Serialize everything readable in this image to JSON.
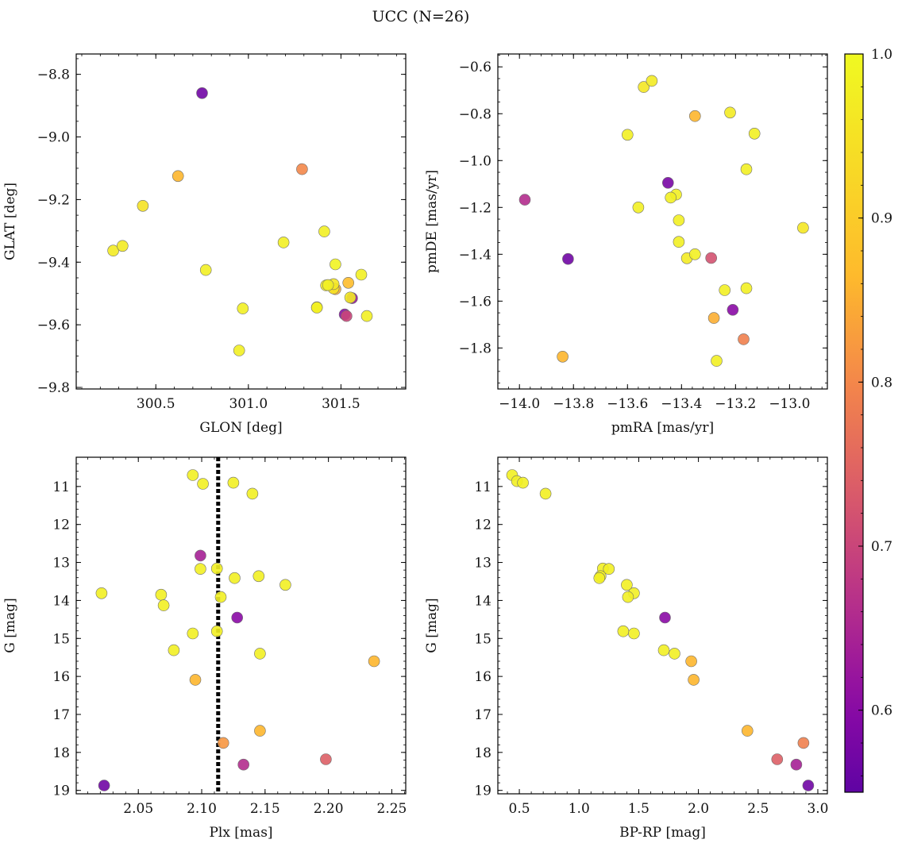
{
  "figure": {
    "title": "UCC (N=26)"
  },
  "colorbar": {
    "colormap": "plasma",
    "vmin": 0.55,
    "vmax": 1.0,
    "ticks": [
      "0.6",
      "0.7",
      "0.8",
      "0.9",
      "1.0"
    ],
    "tick_values": [
      0.6,
      0.7,
      0.8,
      0.9,
      1.0
    ]
  },
  "chart_data": [
    {
      "type": "scatter",
      "panel": "top-left",
      "xlabel": "GLON [deg]",
      "ylabel": "GLAT [deg]",
      "xlim": [
        300.07,
        301.85
      ],
      "ylim": [
        -9.805,
        -8.735
      ],
      "y_inverted": false,
      "xticks": [
        "300.5",
        "301.0",
        "301.5"
      ],
      "xtick_values": [
        300.5,
        301.0,
        301.5
      ],
      "yticks": [
        "−8.8",
        "−9.0",
        "−9.2",
        "−9.4",
        "−9.6",
        "−9.8"
      ],
      "ytick_values": [
        -8.8,
        -9.0,
        -9.2,
        -9.4,
        -9.6,
        -9.8
      ],
      "x": [
        300.75,
        300.62,
        301.29,
        300.43,
        300.27,
        300.32,
        300.77,
        301.19,
        301.41,
        301.47,
        301.61,
        301.43,
        301.54,
        301.46,
        301.42,
        301.55,
        301.56,
        301.37,
        301.37,
        300.97,
        301.52,
        301.53,
        301.64,
        300.95,
        301.47,
        301.46
      ],
      "y": [
        -8.86,
        -9.125,
        -9.103,
        -9.22,
        -9.363,
        -9.348,
        -9.425,
        -9.337,
        -9.302,
        -9.407,
        -9.44,
        -9.473,
        -9.466,
        -9.484,
        -9.474,
        -9.513,
        -9.515,
        -9.545,
        -9.544,
        -9.548,
        -9.567,
        -9.572,
        -9.572,
        -9.682,
        -9.486,
        -9.47
      ],
      "c": [
        0.57,
        0.86,
        0.8,
        0.95,
        0.97,
        0.97,
        0.98,
        0.98,
        0.98,
        0.99,
        0.98,
        0.98,
        0.87,
        0.95,
        0.97,
        0.97,
        0.62,
        0.98,
        0.97,
        0.98,
        0.6,
        0.7,
        0.98,
        0.98,
        0.85,
        0.96
      ]
    },
    {
      "type": "scatter",
      "panel": "top-right",
      "xlabel": "pmRA [mas/yr]",
      "ylabel": "pmDE [mas/yr]",
      "xlim": [
        -14.08,
        -12.86
      ],
      "ylim": [
        -1.975,
        -0.545
      ],
      "y_inverted": false,
      "xticks": [
        "−14.0",
        "−13.8",
        "−13.6",
        "−13.4",
        "−13.2",
        "−13.0"
      ],
      "xtick_values": [
        -14.0,
        -13.8,
        -13.6,
        -13.4,
        -13.2,
        -13.0
      ],
      "yticks": [
        "−0.6",
        "−0.8",
        "−1.0",
        "−1.2",
        "−1.4",
        "−1.6",
        "−1.8"
      ],
      "ytick_values": [
        -0.6,
        -0.8,
        -1.0,
        -1.2,
        -1.4,
        -1.6,
        -1.8
      ],
      "x": [
        -13.51,
        -13.54,
        -13.35,
        -13.22,
        -13.6,
        -13.13,
        -13.16,
        -13.45,
        -13.42,
        -13.44,
        -13.98,
        -13.56,
        -13.41,
        -12.95,
        -13.41,
        -13.82,
        -13.35,
        -13.38,
        -13.29,
        -13.24,
        -13.16,
        -13.21,
        -13.28,
        -13.17,
        -13.84,
        -13.27
      ],
      "y": [
        -0.66,
        -0.686,
        -0.81,
        -0.795,
        -0.89,
        -0.885,
        -1.037,
        -1.095,
        -1.145,
        -1.158,
        -1.167,
        -1.2,
        -1.255,
        -1.287,
        -1.347,
        -1.42,
        -1.4,
        -1.417,
        -1.416,
        -1.553,
        -1.545,
        -1.637,
        -1.672,
        -1.763,
        -1.837,
        -1.855
      ],
      "c": [
        0.97,
        0.96,
        0.86,
        0.97,
        0.98,
        0.98,
        0.98,
        0.58,
        0.98,
        0.98,
        0.66,
        0.98,
        0.98,
        0.96,
        0.98,
        0.57,
        0.98,
        0.97,
        0.72,
        0.98,
        0.98,
        0.6,
        0.85,
        0.79,
        0.86,
        0.98
      ]
    },
    {
      "type": "scatter",
      "panel": "bottom-left",
      "xlabel": "Plx [mas]",
      "ylabel": "G [mag]",
      "xlim": [
        2.001,
        2.261
      ],
      "ylim": [
        10.23,
        19.09
      ],
      "y_inverted": true,
      "xticks": [
        "2.05",
        "2.10",
        "2.15",
        "2.20",
        "2.25"
      ],
      "xtick_values": [
        2.05,
        2.1,
        2.15,
        2.2,
        2.25
      ],
      "yticks": [
        "11",
        "12",
        "13",
        "14",
        "15",
        "16",
        "17",
        "18",
        "19"
      ],
      "ytick_values": [
        11,
        12,
        13,
        14,
        15,
        16,
        17,
        18,
        19
      ],
      "vline_x": 2.113,
      "x": [
        2.093,
        2.101,
        2.125,
        2.14,
        2.099,
        2.099,
        2.112,
        2.145,
        2.126,
        2.166,
        2.021,
        2.068,
        2.07,
        2.115,
        2.128,
        2.093,
        2.112,
        2.078,
        2.146,
        2.236,
        2.095,
        2.146,
        2.117,
        2.198,
        2.133,
        2.023
      ],
      "y": [
        10.7,
        10.93,
        10.9,
        11.19,
        12.82,
        13.17,
        13.16,
        13.36,
        13.41,
        13.59,
        13.81,
        13.85,
        14.13,
        13.91,
        14.45,
        14.87,
        14.81,
        15.31,
        15.4,
        15.6,
        16.09,
        17.43,
        17.75,
        18.18,
        18.32,
        18.87
      ],
      "c": [
        0.98,
        0.98,
        0.98,
        0.98,
        0.64,
        0.98,
        0.98,
        0.98,
        0.98,
        0.98,
        0.98,
        0.98,
        0.98,
        0.98,
        0.6,
        0.98,
        0.98,
        0.98,
        0.98,
        0.86,
        0.86,
        0.86,
        0.82,
        0.74,
        0.66,
        0.57
      ]
    },
    {
      "type": "scatter",
      "panel": "bottom-right",
      "xlabel": "BP-RP [mag]",
      "ylabel": "G [mag]",
      "xlim": [
        0.32,
        3.08
      ],
      "ylim": [
        10.23,
        19.09
      ],
      "y_inverted": true,
      "xticks": [
        "0.5",
        "1.0",
        "1.5",
        "2.0",
        "2.5",
        "3.0"
      ],
      "xtick_values": [
        0.5,
        1.0,
        1.5,
        2.0,
        2.5,
        3.0
      ],
      "yticks": [
        "11",
        "12",
        "13",
        "14",
        "15",
        "16",
        "17",
        "18",
        "19"
      ],
      "ytick_values": [
        11,
        12,
        13,
        14,
        15,
        16,
        17,
        18,
        19
      ],
      "x": [
        0.44,
        0.48,
        0.53,
        0.72,
        1.2,
        1.25,
        1.18,
        1.17,
        1.4,
        1.46,
        1.41,
        1.72,
        1.37,
        1.46,
        1.71,
        1.8,
        1.94,
        1.96,
        2.41,
        2.88,
        2.66,
        2.82,
        2.92
      ],
      "y": [
        10.7,
        10.86,
        10.9,
        11.19,
        13.16,
        13.17,
        13.36,
        13.41,
        13.59,
        13.81,
        13.91,
        14.45,
        14.81,
        14.87,
        15.31,
        15.4,
        15.6,
        16.09,
        17.43,
        17.75,
        18.18,
        18.32,
        18.87
      ],
      "c": [
        0.98,
        0.98,
        0.98,
        0.98,
        0.98,
        0.98,
        0.98,
        0.98,
        0.98,
        0.98,
        0.98,
        0.6,
        0.98,
        0.98,
        0.98,
        0.98,
        0.86,
        0.86,
        0.86,
        0.79,
        0.74,
        0.64,
        0.57
      ]
    }
  ]
}
